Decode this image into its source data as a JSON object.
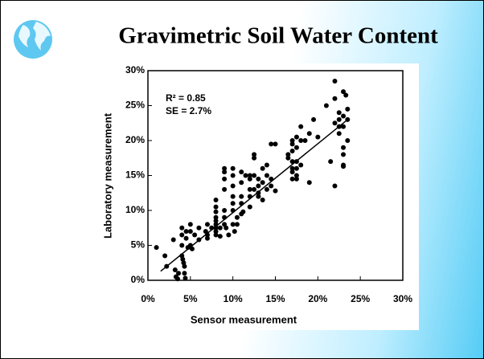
{
  "chart_data": {
    "type": "scatter",
    "title": "Gravimetric Soil Water Content",
    "x_label": "Sensor measurement",
    "y_label": "Laboratory measurement",
    "annotations": [
      "R² = 0.85",
      "SE = 2.7%"
    ],
    "xlim": [
      0,
      30
    ],
    "ylim": [
      0,
      30
    ],
    "xticks": [
      {
        "value": 0,
        "label": "0%"
      },
      {
        "value": 5,
        "label": "5%"
      },
      {
        "value": 10,
        "label": "10%"
      },
      {
        "value": 15,
        "label": "15%"
      },
      {
        "value": 20,
        "label": "20%"
      },
      {
        "value": 25,
        "label": "25%"
      },
      {
        "value": 30,
        "label": "30%"
      }
    ],
    "yticks": [
      {
        "value": 0,
        "label": "0%"
      },
      {
        "value": 5,
        "label": "5%"
      },
      {
        "value": 10,
        "label": "10%"
      },
      {
        "value": 15,
        "label": "15%"
      },
      {
        "value": 20,
        "label": "20%"
      },
      {
        "value": 25,
        "label": "25%"
      },
      {
        "value": 30,
        "label": "30%"
      }
    ],
    "color": "#000000",
    "x": [
      1,
      2,
      2.2,
      3,
      3.2,
      3.3,
      3.5,
      3.6,
      4,
      4,
      4,
      4,
      4.1,
      4.2,
      4.3,
      4.3,
      4.4,
      4.5,
      4.5,
      4.7,
      5,
      5,
      5,
      5.2,
      5.5,
      6,
      6,
      6.8,
      7,
      7,
      7,
      7.5,
      8,
      8,
      8,
      8,
      8,
      8,
      8,
      8,
      8,
      8.5,
      8.5,
      9,
      9,
      9,
      9,
      9,
      9,
      9,
      9.2,
      9.5,
      10,
      10,
      10,
      10,
      10,
      10,
      10,
      10.2,
      10.5,
      10.5,
      11,
      11,
      11,
      11,
      11,
      11.2,
      11.5,
      12,
      12,
      12,
      12,
      12,
      12.5,
      12.5,
      12.5,
      12.5,
      13,
      13,
      13,
      13,
      13.5,
      13.5,
      13.5,
      14,
      14,
      14,
      14.5,
      14.5,
      14.5,
      15,
      15,
      16.5,
      16.5,
      17,
      17,
      17,
      17,
      17,
      17,
      17,
      17.5,
      17.5,
      17.5,
      17.5,
      17.5,
      17.5,
      18,
      18,
      18,
      18.5,
      19,
      19,
      19.5,
      20,
      21,
      21.5,
      22,
      22,
      22,
      22,
      22.5,
      22.5,
      22.5,
      22.5,
      23,
      23,
      23,
      23,
      23,
      23,
      23.3,
      23.5,
      23.5,
      23.5,
      23
    ],
    "values": [
      4.7,
      3.5,
      2,
      5.8,
      1.5,
      0.5,
      0.2,
      1,
      7.5,
      6.5,
      5,
      3.5,
      3,
      2.5,
      2,
      1,
      0.3,
      7,
      6,
      4.7,
      8,
      7,
      5,
      4.5,
      6.5,
      7.5,
      5.8,
      7,
      6.5,
      6,
      8,
      7.5,
      11.5,
      10.5,
      9.8,
      9,
      8.5,
      8,
      7.5,
      7,
      6.5,
      7.5,
      6.3,
      16,
      15.5,
      14.5,
      13,
      10,
      9,
      8,
      7.5,
      6.5,
      16,
      15,
      13.5,
      12,
      11,
      10,
      8,
      7,
      9,
      8,
      15.5,
      14,
      12,
      11,
      9.5,
      9.8,
      15,
      15,
      14.5,
      13,
      12,
      10.5,
      18,
      17.5,
      15,
      13,
      14.5,
      13.5,
      12.5,
      12,
      16,
      14,
      11.5,
      16.5,
      15,
      13,
      19.5,
      14.5,
      13.5,
      19.5,
      12.8,
      17.5,
      18,
      20,
      19.5,
      18.5,
      17,
      16,
      15.5,
      14.5,
      20.5,
      19,
      17,
      16,
      15,
      14.5,
      22,
      20,
      16.5,
      20,
      21,
      14,
      23,
      20.5,
      25,
      17,
      28.5,
      26,
      22.5,
      13.5,
      24,
      23,
      22,
      21,
      27,
      23.5,
      22,
      19,
      18,
      16.5,
      26.5,
      24.5,
      23,
      20,
      16.3
    ],
    "trend_line": {
      "x": [
        1.5,
        23.5
      ],
      "y": [
        1.3,
        23
      ]
    }
  }
}
